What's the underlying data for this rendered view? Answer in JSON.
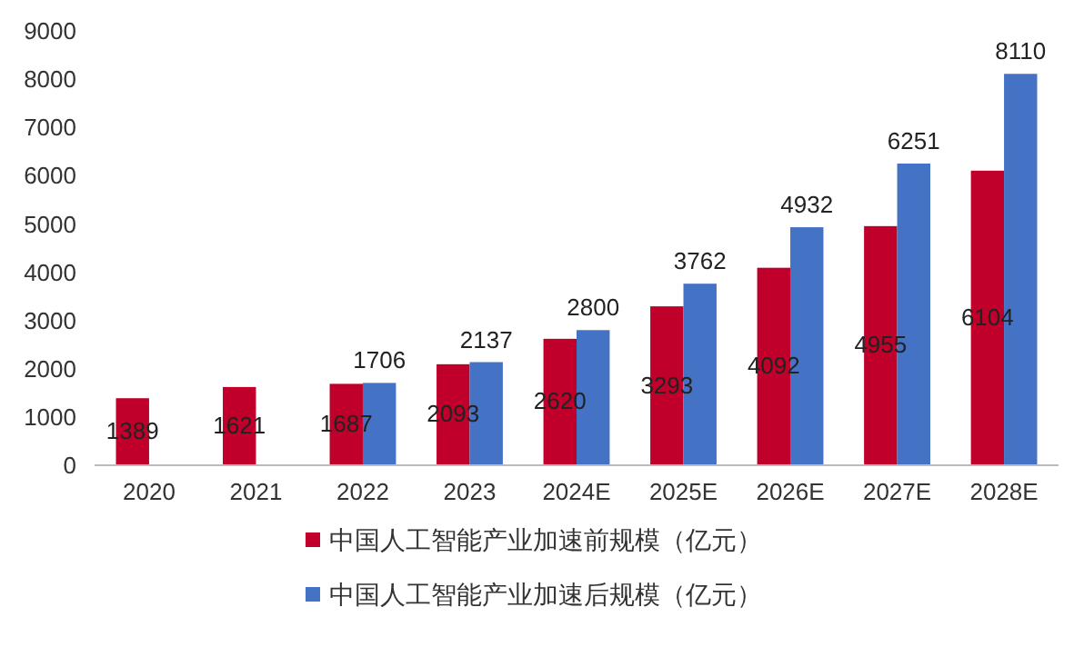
{
  "chart_data": {
    "type": "bar",
    "categories": [
      "2020",
      "2021",
      "2022",
      "2023",
      "2024E",
      "2025E",
      "2026E",
      "2027E",
      "2028E"
    ],
    "series": [
      {
        "name": "中国人工智能产业加速前规模（亿元）",
        "color": "#c0002a",
        "values": [
          1389,
          1621,
          1687,
          2093,
          2620,
          3293,
          4092,
          4955,
          6104
        ]
      },
      {
        "name": "中国人工智能产业加速后规模（亿元）",
        "color": "#4472c4",
        "values": [
          null,
          null,
          1706,
          2137,
          2800,
          3762,
          4932,
          6251,
          8110
        ]
      }
    ],
    "ylim": [
      0,
      9000
    ],
    "yticks": [
      0,
      1000,
      2000,
      3000,
      4000,
      5000,
      6000,
      7000,
      8000,
      9000
    ],
    "data_labels": true,
    "legend": "bottom",
    "grid": false
  }
}
